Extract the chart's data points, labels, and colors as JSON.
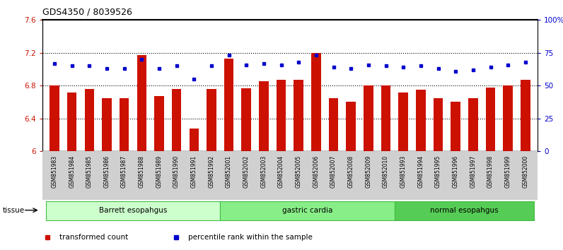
{
  "title": "GDS4350 / 8039526",
  "samples": [
    "GSM851983",
    "GSM851984",
    "GSM851985",
    "GSM851986",
    "GSM851987",
    "GSM851988",
    "GSM851989",
    "GSM851990",
    "GSM851991",
    "GSM851992",
    "GSM852001",
    "GSM852002",
    "GSM852003",
    "GSM852004",
    "GSM852005",
    "GSM852006",
    "GSM852007",
    "GSM852008",
    "GSM852009",
    "GSM852010",
    "GSM851993",
    "GSM851994",
    "GSM851995",
    "GSM851996",
    "GSM851997",
    "GSM851998",
    "GSM851999",
    "GSM852000"
  ],
  "bar_values": [
    6.8,
    6.72,
    6.76,
    6.65,
    6.65,
    7.17,
    6.67,
    6.76,
    6.28,
    6.76,
    7.13,
    6.77,
    6.85,
    6.87,
    6.87,
    7.2,
    6.65,
    6.6,
    6.8,
    6.8,
    6.72,
    6.75,
    6.65,
    6.6,
    6.65,
    6.78,
    6.8,
    6.87
  ],
  "percentile_values": [
    67,
    65,
    65,
    63,
    63,
    70,
    63,
    65,
    55,
    65,
    73,
    66,
    67,
    66,
    68,
    73,
    64,
    63,
    66,
    65,
    64,
    65,
    63,
    61,
    62,
    64,
    66,
    68
  ],
  "groups": [
    {
      "label": "Barrett esopahgus",
      "start": 0,
      "end": 9,
      "color": "#ccffcc",
      "edge": "#44bb44"
    },
    {
      "label": "gastric cardia",
      "start": 10,
      "end": 19,
      "color": "#88ee88",
      "edge": "#44bb44"
    },
    {
      "label": "normal esopahgus",
      "start": 20,
      "end": 27,
      "color": "#55cc55",
      "edge": "#44bb44"
    }
  ],
  "ylim_left": [
    6.0,
    7.6
  ],
  "ylim_right": [
    0,
    100
  ],
  "bar_color": "#cc1100",
  "dot_color": "#0000cc",
  "bar_base": 6.0,
  "ylabel_left_color": "#cc1100",
  "ylabel_right_color": "#0000cc",
  "yticks_left": [
    6.0,
    6.4,
    6.8,
    7.2,
    7.6
  ],
  "ytick_labels_left": [
    "6",
    "6.4",
    "6.8",
    "7.2",
    "7.6"
  ],
  "yticks_right": [
    0,
    25,
    50,
    75,
    100
  ],
  "ytick_labels_right": [
    "0",
    "25",
    "50",
    "75",
    "100%"
  ],
  "legend_items": [
    {
      "label": "transformed count",
      "color": "#cc1100"
    },
    {
      "label": "percentile rank within the sample",
      "color": "#0000cc"
    }
  ],
  "tissue_label": "tissue",
  "grid_color": "black",
  "grid_linestyle": "dotted",
  "grid_linewidth": 0.8,
  "xtick_bg_color": "#d0d0d0",
  "bar_width": 0.55
}
